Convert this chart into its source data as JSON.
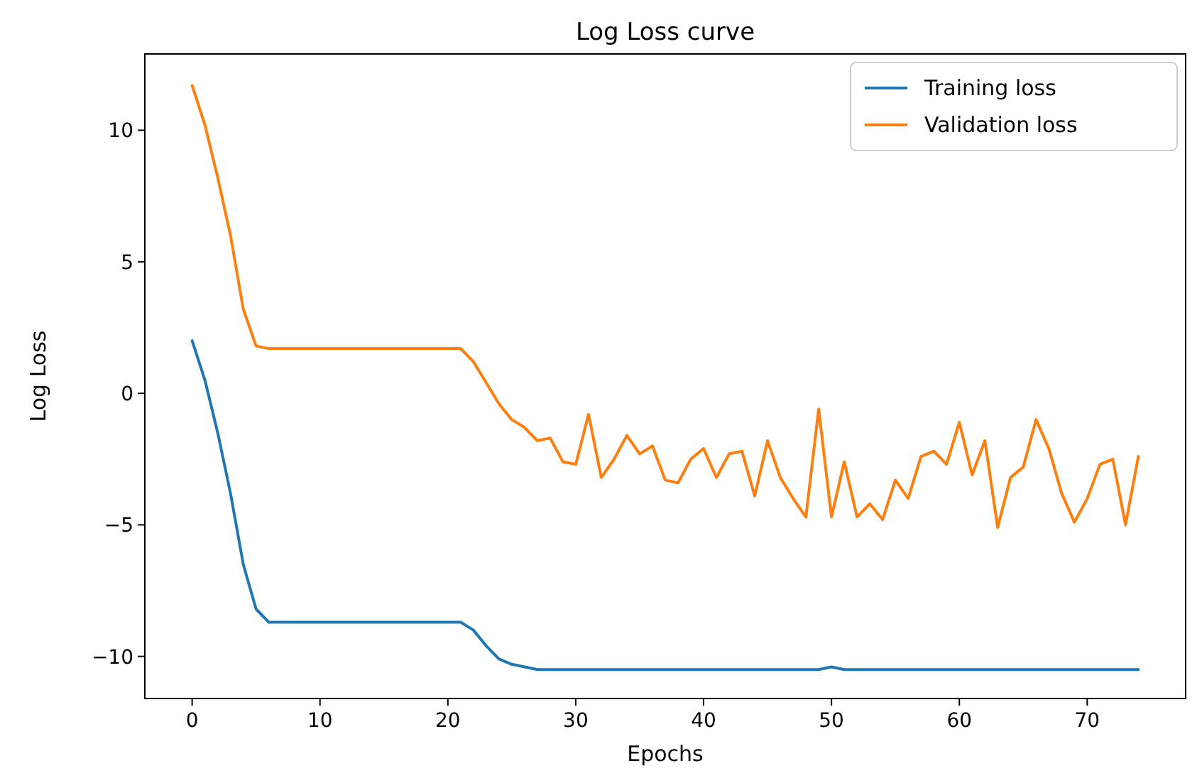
{
  "chart_data": {
    "type": "line",
    "title": "Log Loss curve",
    "xlabel": "Epochs",
    "ylabel": "Log Loss",
    "x": [
      0,
      1,
      2,
      3,
      4,
      5,
      6,
      7,
      8,
      9,
      10,
      11,
      12,
      13,
      14,
      15,
      16,
      17,
      18,
      19,
      20,
      21,
      22,
      23,
      24,
      25,
      26,
      27,
      28,
      29,
      30,
      31,
      32,
      33,
      34,
      35,
      36,
      37,
      38,
      39,
      40,
      41,
      42,
      43,
      44,
      45,
      46,
      47,
      48,
      49,
      50,
      51,
      52,
      53,
      54,
      55,
      56,
      57,
      58,
      59,
      60,
      61,
      62,
      63,
      64,
      65,
      66,
      67,
      68,
      69,
      70,
      71,
      72,
      73,
      74
    ],
    "series": [
      {
        "name": "Training loss",
        "color": "#1f77b4",
        "values": [
          2,
          0.5,
          -1.5,
          -3.8,
          -6.5,
          -8.2,
          -8.7,
          -8.7,
          -8.7,
          -8.7,
          -8.7,
          -8.7,
          -8.7,
          -8.7,
          -8.7,
          -8.7,
          -8.7,
          -8.7,
          -8.7,
          -8.7,
          -8.7,
          -8.7,
          -9,
          -9.6,
          -10.1,
          -10.3,
          -10.4,
          -10.5,
          -10.5,
          -10.5,
          -10.5,
          -10.5,
          -10.5,
          -10.5,
          -10.5,
          -10.5,
          -10.5,
          -10.5,
          -10.5,
          -10.5,
          -10.5,
          -10.5,
          -10.5,
          -10.5,
          -10.5,
          -10.5,
          -10.5,
          -10.5,
          -10.5,
          -10.5,
          -10.4,
          -10.5,
          -10.5,
          -10.5,
          -10.5,
          -10.5,
          -10.5,
          -10.5,
          -10.5,
          -10.5,
          -10.5,
          -10.5,
          -10.5,
          -10.5,
          -10.5,
          -10.5,
          -10.5,
          -10.5,
          -10.5,
          -10.5,
          -10.5,
          -10.5,
          -10.5,
          -10.5,
          -10.5
        ]
      },
      {
        "name": "Validation loss",
        "color": "#ff7f0e",
        "values": [
          11.7,
          10.2,
          8.2,
          6,
          3.2,
          1.8,
          1.7,
          1.7,
          1.7,
          1.7,
          1.7,
          1.7,
          1.7,
          1.7,
          1.7,
          1.7,
          1.7,
          1.7,
          1.7,
          1.7,
          1.7,
          1.7,
          1.2,
          0.4,
          -0.4,
          -1,
          -1.3,
          -1.8,
          -1.7,
          -2.6,
          -2.7,
          -0.8,
          -3.2,
          -2.5,
          -1.6,
          -2.3,
          -2,
          -3.3,
          -3.4,
          -2.5,
          -2.1,
          -3.2,
          -2.3,
          -2.2,
          -3.9,
          -1.8,
          -3.2,
          -4,
          -4.7,
          -0.6,
          -4.7,
          -2.6,
          -4.7,
          -4.2,
          -4.8,
          -3.3,
          -4,
          -2.4,
          -2.2,
          -2.7,
          -1.1,
          -3.1,
          -1.8,
          -5.1,
          -3.2,
          -2.8,
          -1,
          -2.1,
          -3.8,
          -4.9,
          -4,
          -2.7,
          -2.5,
          -5,
          -2.4
        ]
      }
    ],
    "xlim": [
      -3.7,
      77.7
    ],
    "ylim": [
      -11.6,
      12.9
    ],
    "xticks": [
      0,
      10,
      20,
      30,
      40,
      50,
      60,
      70
    ],
    "yticks": [
      -10,
      -5,
      0,
      5,
      10
    ],
    "legend": "top right",
    "line_style": "solid",
    "grid": false
  }
}
